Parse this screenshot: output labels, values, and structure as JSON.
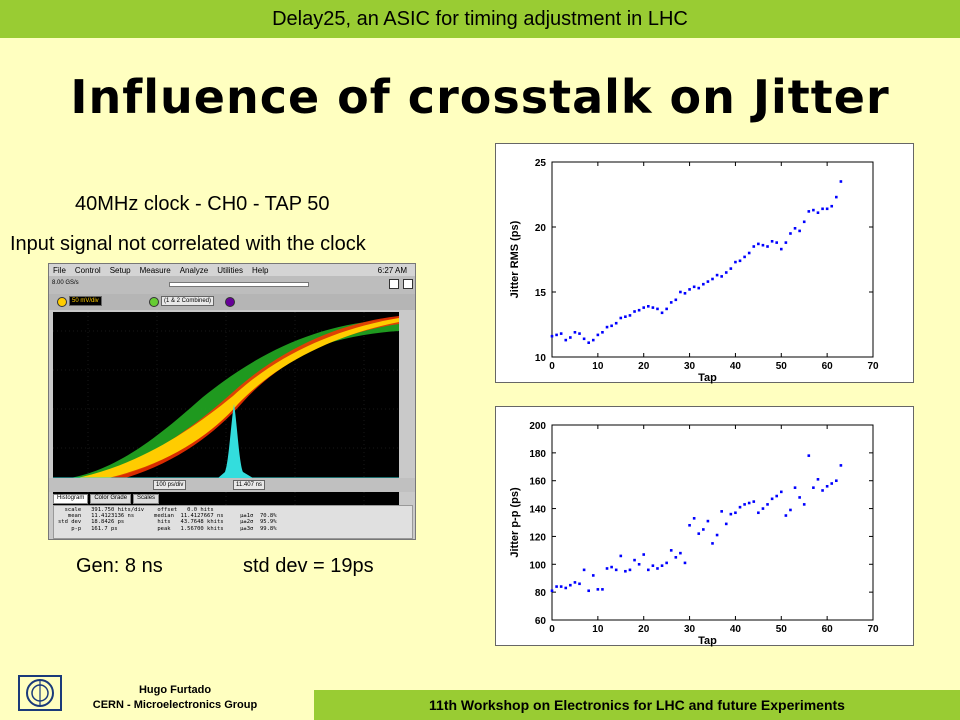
{
  "header": {
    "banner": "Delay25, an ASIC for timing adjustment in LHC",
    "title": "Influence of crosstalk on Jitter"
  },
  "left": {
    "subtitle1": "40MHz clock - CH0 - TAP 50",
    "subtitle2": "Input signal not correlated with the clock",
    "caption_gen": "Gen: 8 ns",
    "caption_std": "std dev = 19ps"
  },
  "scope": {
    "menu": [
      "File",
      "Control",
      "Setup",
      "Measure",
      "Analyze",
      "Utilities",
      "Help"
    ],
    "time": "6:27 AM",
    "rate": "8.00 GS/s",
    "ch1_scale": "50 mV/div",
    "combined": "(1 & 2 Combined)",
    "timebase": "100 ps/div",
    "position": "11.407 ns",
    "tabs": [
      "Histogram",
      "Color Grade",
      "Scales"
    ],
    "stats": "  scale   391.750 hits/div    offset   0.0 hits\n   mean   11.4123136 ns      median  11.4127667 ns     µ±1σ  70.8%\nstd dev   18.8426 ps          hits   43.7648 khits     µ±2σ  95.9%\n    p-p   161.7 ps            peak   1.56700 khits     µ±3σ  99.8%"
  },
  "chart_data": [
    {
      "type": "scatter",
      "xlabel": "Tap",
      "ylabel": "Jitter RMS (ps)",
      "xlim": [
        0,
        70
      ],
      "ylim": [
        10,
        25
      ],
      "xticks": [
        0,
        10,
        20,
        30,
        40,
        50,
        60,
        70
      ],
      "yticks": [
        10,
        15,
        20,
        25
      ],
      "color": "#0000ff",
      "x": [
        0,
        1,
        2,
        3,
        4,
        5,
        6,
        7,
        8,
        9,
        10,
        11,
        12,
        13,
        14,
        15,
        16,
        17,
        18,
        19,
        20,
        21,
        22,
        23,
        24,
        25,
        26,
        27,
        28,
        29,
        30,
        31,
        32,
        33,
        34,
        35,
        36,
        37,
        38,
        39,
        40,
        41,
        42,
        43,
        44,
        45,
        46,
        47,
        48,
        49,
        50,
        51,
        52,
        53,
        54,
        55,
        56,
        57,
        58,
        59,
        60,
        61,
        62,
        63
      ],
      "y": [
        11.6,
        11.7,
        11.8,
        11.3,
        11.5,
        11.9,
        11.8,
        11.4,
        11.1,
        11.3,
        11.7,
        11.9,
        12.3,
        12.4,
        12.6,
        13.0,
        13.1,
        13.2,
        13.5,
        13.6,
        13.8,
        13.9,
        13.8,
        13.7,
        13.4,
        13.7,
        14.2,
        14.4,
        15.0,
        14.9,
        15.2,
        15.4,
        15.3,
        15.6,
        15.8,
        16.0,
        16.3,
        16.2,
        16.5,
        16.8,
        17.3,
        17.4,
        17.7,
        18.0,
        18.5,
        18.7,
        18.6,
        18.5,
        18.9,
        18.8,
        18.3,
        18.8,
        19.5,
        19.9,
        19.7,
        20.4,
        21.2,
        21.3,
        21.1,
        21.4,
        21.4,
        21.6,
        22.3,
        23.5
      ]
    },
    {
      "type": "scatter",
      "xlabel": "Tap",
      "ylabel": "Jitter p-p (ps)",
      "xlim": [
        0,
        70
      ],
      "ylim": [
        60,
        200
      ],
      "xticks": [
        0,
        10,
        20,
        30,
        40,
        50,
        60,
        70
      ],
      "yticks": [
        60,
        80,
        100,
        120,
        140,
        160,
        180,
        200
      ],
      "color": "#0000ff",
      "x": [
        0,
        1,
        2,
        3,
        4,
        5,
        6,
        7,
        8,
        9,
        10,
        11,
        12,
        13,
        14,
        15,
        16,
        17,
        18,
        19,
        20,
        21,
        22,
        23,
        24,
        25,
        26,
        27,
        28,
        29,
        30,
        31,
        32,
        33,
        34,
        35,
        36,
        37,
        38,
        39,
        40,
        41,
        42,
        43,
        44,
        45,
        46,
        47,
        48,
        49,
        50,
        51,
        52,
        53,
        54,
        55,
        56,
        57,
        58,
        59,
        60,
        61,
        62,
        63
      ],
      "y": [
        81,
        84,
        84,
        83,
        85,
        87,
        86,
        96,
        81,
        92,
        82,
        82,
        97,
        98,
        96,
        106,
        95,
        96,
        103,
        100,
        107,
        96,
        99,
        97,
        99,
        101,
        110,
        105,
        108,
        101,
        128,
        133,
        122,
        125,
        131,
        115,
        121,
        138,
        129,
        136,
        137,
        141,
        143,
        144,
        145,
        137,
        140,
        143,
        147,
        149,
        152,
        135,
        139,
        155,
        148,
        143,
        178,
        155,
        161,
        153,
        156,
        158,
        160,
        171
      ]
    }
  ],
  "footer": {
    "author_name": "Hugo Furtado",
    "author_group": "CERN - Microelectronics Group",
    "workshop": "11th Workshop on Electronics for LHC and future Experiments",
    "logo_text": "CERN"
  }
}
